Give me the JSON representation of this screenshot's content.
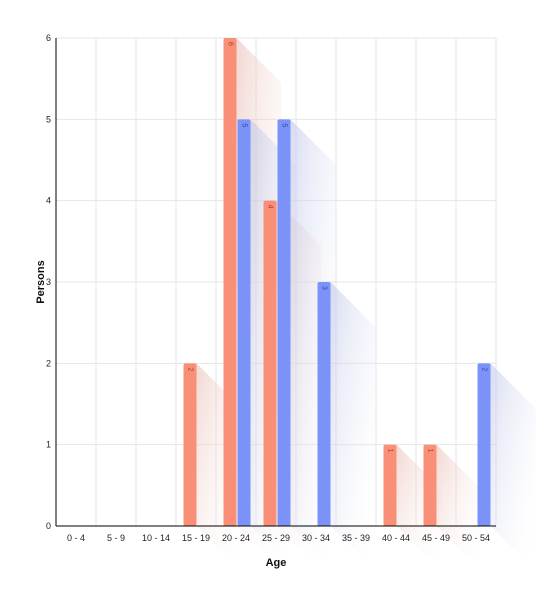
{
  "chart_data": {
    "type": "bar",
    "title": "",
    "xlabel": "Age",
    "ylabel": "Persons",
    "ylim": [
      0,
      6
    ],
    "yticks": [
      0,
      1,
      2,
      3,
      4,
      5,
      6
    ],
    "grid": true,
    "legend": "none",
    "categories": [
      "0 - 4",
      "5 - 9",
      "10 - 14",
      "15 - 19",
      "20 - 24",
      "25 - 29",
      "30 - 34",
      "35 - 39",
      "40 - 44",
      "45 - 49",
      "50 - 54"
    ],
    "series": [
      {
        "color": "#fa8f78",
        "values": [
          0,
          0,
          0,
          2,
          6,
          4,
          0,
          0,
          1,
          1,
          0
        ]
      },
      {
        "color": "#7b93f8",
        "values": [
          0,
          0,
          0,
          0,
          5,
          5,
          3,
          0,
          0,
          0,
          2
        ]
      }
    ],
    "colors": {
      "series_a": "#fa8f78",
      "series_b": "#7b93f8",
      "grid": "#e6e6e6",
      "axis": "#000000"
    }
  }
}
